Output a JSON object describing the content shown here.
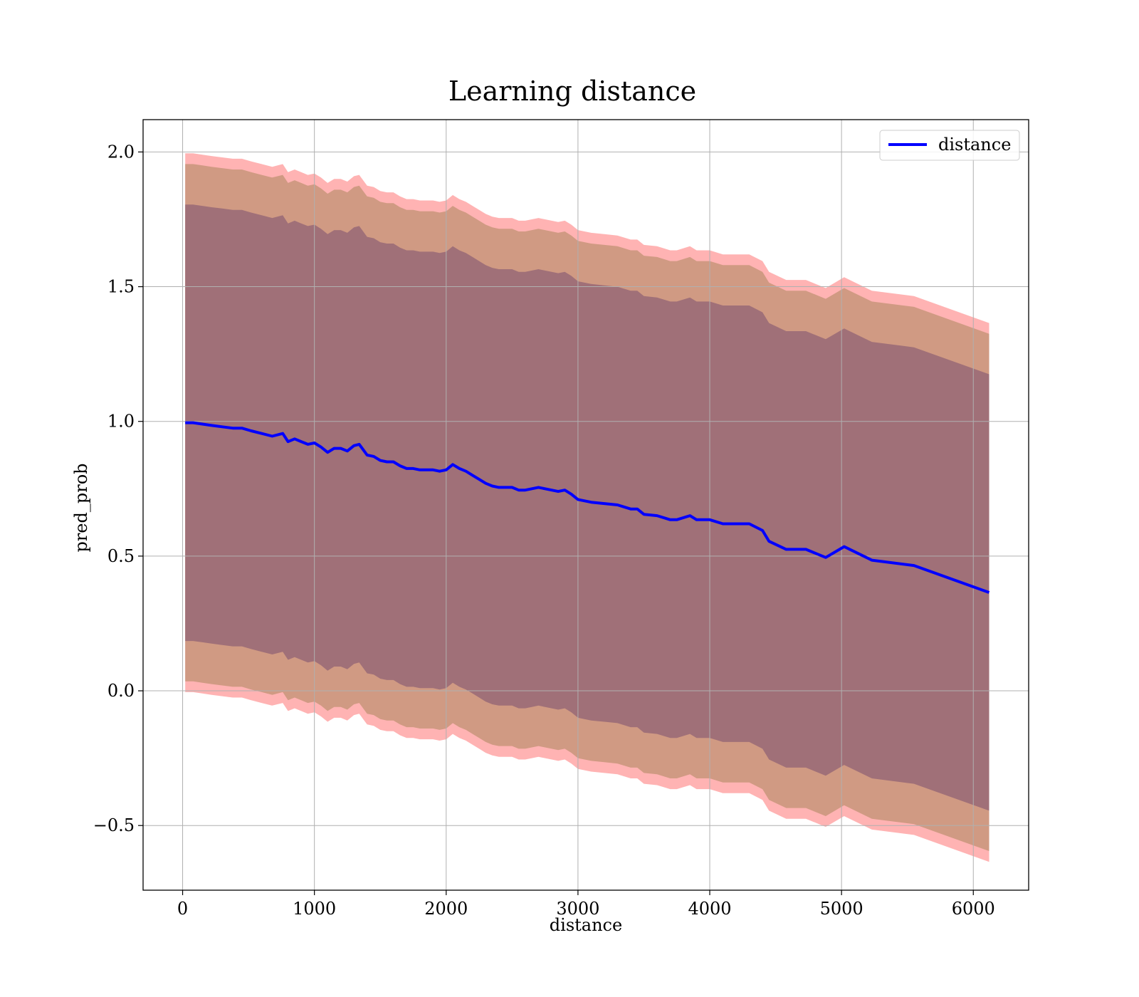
{
  "chart_data": {
    "type": "line",
    "title": "Learning distance",
    "xlabel": "distance",
    "ylabel": "pred_prob",
    "xlim": [
      -300,
      6420
    ],
    "ylim": [
      -0.74,
      2.12
    ],
    "xticks": [
      0,
      1000,
      2000,
      3000,
      4000,
      5000,
      6000
    ],
    "xtick_labels": [
      "0",
      "1000",
      "2000",
      "3000",
      "4000",
      "5000",
      "6000"
    ],
    "yticks": [
      -0.5,
      0.0,
      0.5,
      1.0,
      1.5,
      2.0
    ],
    "ytick_labels": [
      "−0.5",
      "0.0",
      "0.5",
      "1.0",
      "1.5",
      "2.0"
    ],
    "grid": true,
    "legend_position": "top-right",
    "colors": {
      "line": "#0000ff",
      "outer_band": "#ff9999",
      "middle_band": "#c8957a",
      "inner_band": "#a07078",
      "grid": "#b0b0b0"
    },
    "series": [
      {
        "name": "distance",
        "x": [
          20,
          80,
          150,
          220,
          300,
          380,
          450,
          520,
          600,
          680,
          760,
          800,
          850,
          900,
          950,
          1000,
          1050,
          1100,
          1150,
          1200,
          1250,
          1300,
          1340,
          1400,
          1450,
          1500,
          1550,
          1600,
          1650,
          1700,
          1750,
          1800,
          1850,
          1900,
          1950,
          2000,
          2050,
          2100,
          2150,
          2200,
          2250,
          2300,
          2350,
          2400,
          2450,
          2500,
          2550,
          2600,
          2650,
          2700,
          2750,
          2800,
          2850,
          2900,
          2950,
          3000,
          3100,
          3200,
          3300,
          3400,
          3450,
          3500,
          3600,
          3700,
          3750,
          3850,
          3900,
          4000,
          4100,
          4200,
          4300,
          4400,
          4450,
          4580,
          4730,
          4880,
          5020,
          5230,
          5550,
          6120
        ],
        "y": [
          0.995,
          0.995,
          0.99,
          0.985,
          0.98,
          0.975,
          0.975,
          0.965,
          0.955,
          0.945,
          0.955,
          0.925,
          0.935,
          0.925,
          0.915,
          0.92,
          0.905,
          0.885,
          0.9,
          0.9,
          0.89,
          0.91,
          0.915,
          0.875,
          0.87,
          0.855,
          0.85,
          0.85,
          0.835,
          0.825,
          0.825,
          0.82,
          0.82,
          0.82,
          0.815,
          0.82,
          0.84,
          0.825,
          0.815,
          0.8,
          0.785,
          0.77,
          0.76,
          0.755,
          0.755,
          0.755,
          0.745,
          0.745,
          0.75,
          0.755,
          0.75,
          0.745,
          0.74,
          0.745,
          0.73,
          0.71,
          0.7,
          0.695,
          0.69,
          0.675,
          0.675,
          0.655,
          0.65,
          0.635,
          0.635,
          0.65,
          0.635,
          0.635,
          0.62,
          0.62,
          0.62,
          0.595,
          0.555,
          0.525,
          0.525,
          0.495,
          0.535,
          0.485,
          0.465,
          0.365
        ]
      }
    ],
    "bands": [
      {
        "half_width": 1.0,
        "color_key": "outer_band",
        "opacity": 0.75
      },
      {
        "half_width": 0.96,
        "color_key": "middle_band",
        "opacity": 0.85
      },
      {
        "half_width": 0.81,
        "color_key": "inner_band",
        "opacity": 1.0
      }
    ]
  }
}
